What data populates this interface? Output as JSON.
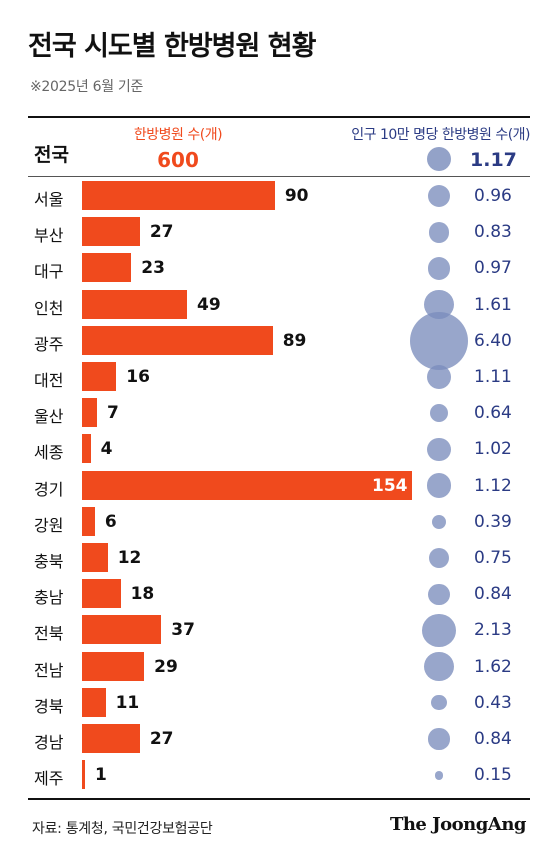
{
  "title": "전국 시도별 한방병원 현황",
  "subtitle": "※2025년 6월 기준",
  "header": {
    "count_label": "한방병원 수(개)",
    "rate_label": "인구 10만 명당 한방병원 수(개)"
  },
  "national": {
    "label": "전국",
    "count": "600",
    "rate": "1.17"
  },
  "source": "자료: 통계청, 국민건강보험공단",
  "brand": "The JoongAng",
  "colors": {
    "bar": "#f04a1d",
    "bubble": "#7b8dbd",
    "rate_text": "#2b3b84"
  },
  "chart_data": {
    "type": "bar",
    "title": "전국 시도별 한방병원 현황",
    "categories": [
      "서울",
      "부산",
      "대구",
      "인천",
      "광주",
      "대전",
      "울산",
      "세종",
      "경기",
      "강원",
      "충북",
      "충남",
      "전북",
      "전남",
      "경북",
      "경남",
      "제주"
    ],
    "series": [
      {
        "name": "한방병원 수(개)",
        "values": [
          90,
          27,
          23,
          49,
          89,
          16,
          7,
          4,
          154,
          6,
          12,
          18,
          37,
          29,
          11,
          27,
          1
        ]
      },
      {
        "name": "인구 10만 명당 한방병원 수(개)",
        "values": [
          "0.96",
          "0.83",
          "0.97",
          "1.61",
          "6.40",
          "1.11",
          "0.64",
          "1.02",
          "1.12",
          "0.39",
          "0.75",
          "0.84",
          "2.13",
          "1.62",
          "0.43",
          "0.84",
          "0.15"
        ]
      }
    ]
  }
}
